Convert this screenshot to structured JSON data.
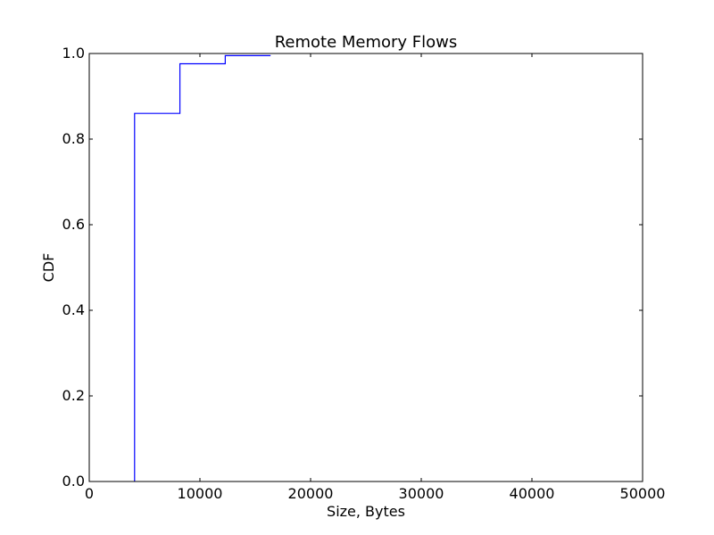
{
  "chart_data": {
    "type": "line",
    "title": "Remote Memory Flows",
    "xlabel": "Size, Bytes",
    "ylabel": "CDF",
    "xlim": [
      0,
      50000
    ],
    "ylim": [
      0.0,
      1.0
    ],
    "x_ticks": [
      0,
      10000,
      20000,
      30000,
      40000,
      50000
    ],
    "x_tick_labels": [
      "0",
      "10000",
      "20000",
      "30000",
      "40000",
      "50000"
    ],
    "y_ticks": [
      0.0,
      0.2,
      0.4,
      0.6,
      0.8,
      1.0
    ],
    "y_tick_labels": [
      "0.0",
      "0.2",
      "0.4",
      "0.6",
      "0.8",
      "1.0"
    ],
    "grid": false,
    "series": [
      {
        "color": "#0000ff",
        "step": true,
        "x": [
          4096,
          4096,
          8192,
          8192,
          12288,
          12288,
          16384
        ],
        "y": [
          0.0,
          0.86,
          0.86,
          0.976,
          0.976,
          0.995,
          0.995
        ]
      }
    ]
  }
}
